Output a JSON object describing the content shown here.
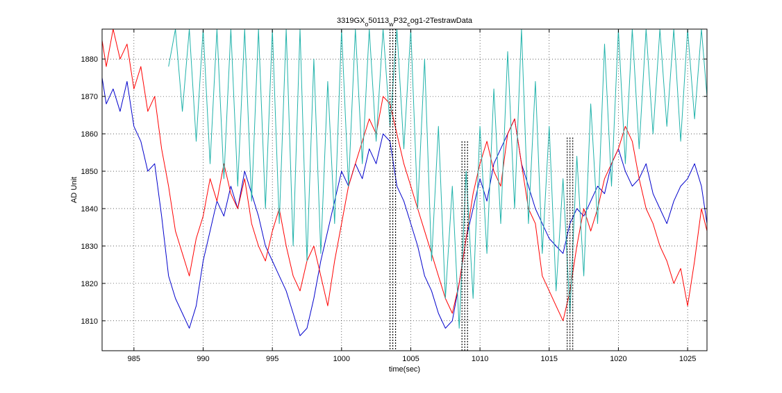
{
  "chart_data": {
    "type": "line",
    "title": {
      "parts": [
        {
          "text": "3319GX",
          "sub": false
        },
        {
          "text": "o",
          "sub": true
        },
        {
          "text": "50113",
          "sub": false
        },
        {
          "text": "w",
          "sub": true
        },
        {
          "text": "P32",
          "sub": false
        },
        {
          "text": "c",
          "sub": true
        },
        {
          "text": "og1-2TestrawData",
          "sub": false
        }
      ]
    },
    "xlabel": "time(sec)",
    "ylabel": "AD Unit",
    "xlim": [
      982.7,
      1026.4
    ],
    "ylim": [
      1802,
      1888
    ],
    "xticks": [
      985,
      990,
      995,
      1000,
      1005,
      1010,
      1015,
      1020,
      1025
    ],
    "yticks": [
      1810,
      1820,
      1830,
      1840,
      1850,
      1860,
      1870,
      1880
    ],
    "grid": true,
    "grid_style": "dotted",
    "event_markers": [
      {
        "x": 1003.7,
        "y_range": [
          1802,
          1888
        ]
      },
      {
        "x": 1008.9,
        "y_range": [
          1802,
          1858
        ]
      },
      {
        "x": 1016.5,
        "y_range": [
          1802,
          1859
        ]
      }
    ],
    "series": [
      {
        "color": "#0000cc",
        "x": [
          982.7,
          983.0,
          983.5,
          984.0,
          984.5,
          985.0,
          985.5,
          986.0,
          986.5,
          987.0,
          987.5,
          988.0,
          988.5,
          989.0,
          989.5,
          990.0,
          990.5,
          991.0,
          991.5,
          992.0,
          992.5,
          993.0,
          993.5,
          994.0,
          994.5,
          995.0,
          995.5,
          996.0,
          996.5,
          997.0,
          997.5,
          998.0,
          998.5,
          999.0,
          999.5,
          1000.0,
          1000.5,
          1001.0,
          1001.5,
          1002.0,
          1002.5,
          1003.0,
          1003.5,
          1004.0,
          1004.5,
          1005.0,
          1005.5,
          1006.0,
          1006.5,
          1007.0,
          1007.5,
          1008.0,
          1008.5,
          1009.0,
          1009.5,
          1010.0,
          1010.5,
          1011.0,
          1011.5,
          1012.0,
          1012.5,
          1013.0,
          1013.5,
          1014.0,
          1014.5,
          1015.0,
          1015.5,
          1016.0,
          1016.5,
          1017.0,
          1017.5,
          1018.0,
          1018.5,
          1019.0,
          1019.5,
          1020.0,
          1020.5,
          1021.0,
          1021.5,
          1022.0,
          1022.5,
          1023.0,
          1023.5,
          1024.0,
          1024.5,
          1025.0,
          1025.5,
          1026.0,
          1026.4
        ],
        "y": [
          1875,
          1868,
          1872,
          1866,
          1874,
          1862,
          1858,
          1850,
          1852,
          1838,
          1822,
          1816,
          1812,
          1808,
          1814,
          1826,
          1834,
          1842,
          1838,
          1846,
          1840,
          1850,
          1844,
          1838,
          1830,
          1826,
          1822,
          1818,
          1812,
          1806,
          1808,
          1816,
          1826,
          1834,
          1842,
          1850,
          1846,
          1852,
          1848,
          1856,
          1852,
          1860,
          1858,
          1846,
          1842,
          1836,
          1830,
          1822,
          1818,
          1812,
          1808,
          1810,
          1820,
          1832,
          1840,
          1848,
          1842,
          1852,
          1856,
          1860,
          1864,
          1852,
          1846,
          1840,
          1836,
          1832,
          1830,
          1828,
          1836,
          1840,
          1838,
          1842,
          1846,
          1844,
          1852,
          1856,
          1850,
          1846,
          1848,
          1852,
          1844,
          1840,
          1836,
          1842,
          1846,
          1848,
          1852,
          1846,
          1836
        ]
      },
      {
        "color": "#ff0000",
        "x": [
          982.7,
          983.0,
          983.5,
          984.0,
          984.5,
          985.0,
          985.5,
          986.0,
          986.5,
          987.0,
          987.5,
          988.0,
          988.5,
          989.0,
          989.5,
          990.0,
          990.5,
          991.0,
          991.5,
          992.0,
          992.5,
          993.0,
          993.5,
          994.0,
          994.5,
          995.0,
          995.5,
          996.0,
          996.5,
          997.0,
          997.5,
          998.0,
          998.5,
          999.0,
          999.5,
          1000.0,
          1000.5,
          1001.0,
          1001.5,
          1002.0,
          1002.5,
          1003.0,
          1003.5,
          1004.0,
          1004.5,
          1005.0,
          1005.5,
          1006.0,
          1006.5,
          1007.0,
          1007.5,
          1008.0,
          1008.5,
          1009.0,
          1009.5,
          1010.0,
          1010.5,
          1011.0,
          1011.5,
          1012.0,
          1012.5,
          1013.0,
          1013.5,
          1014.0,
          1014.5,
          1015.0,
          1015.5,
          1016.0,
          1016.5,
          1017.0,
          1017.5,
          1018.0,
          1018.5,
          1019.0,
          1019.5,
          1020.0,
          1020.5,
          1021.0,
          1021.5,
          1022.0,
          1022.5,
          1023.0,
          1023.5,
          1024.0,
          1024.5,
          1025.0,
          1025.5,
          1026.0,
          1026.4
        ],
        "y": [
          1885,
          1878,
          1888,
          1880,
          1884,
          1872,
          1878,
          1866,
          1870,
          1856,
          1846,
          1834,
          1828,
          1822,
          1832,
          1838,
          1848,
          1842,
          1852,
          1844,
          1840,
          1848,
          1836,
          1830,
          1826,
          1834,
          1840,
          1830,
          1822,
          1818,
          1826,
          1830,
          1822,
          1814,
          1826,
          1836,
          1846,
          1852,
          1858,
          1864,
          1860,
          1870,
          1868,
          1860,
          1852,
          1846,
          1840,
          1834,
          1828,
          1822,
          1816,
          1812,
          1820,
          1832,
          1844,
          1852,
          1858,
          1850,
          1846,
          1860,
          1864,
          1852,
          1840,
          1836,
          1822,
          1818,
          1814,
          1810,
          1818,
          1830,
          1840,
          1834,
          1840,
          1848,
          1852,
          1856,
          1862,
          1858,
          1848,
          1840,
          1836,
          1830,
          1826,
          1820,
          1824,
          1814,
          1826,
          1840,
          1834
        ]
      },
      {
        "color": "#20b2aa",
        "x": [
          987.5,
          988.0,
          988.5,
          989.0,
          989.5,
          990.0,
          990.5,
          991.0,
          991.5,
          992.0,
          992.5,
          993.0,
          993.5,
          994.0,
          994.5,
          995.0,
          995.5,
          996.0,
          996.5,
          997.0,
          997.5,
          998.0,
          998.5,
          999.0,
          999.5,
          1000.0,
          1000.5,
          1001.0,
          1001.5,
          1002.0,
          1002.5,
          1003.0,
          1003.5,
          1004.0,
          1004.5,
          1005.0,
          1005.5,
          1006.0,
          1006.5,
          1007.0,
          1007.5,
          1008.0,
          1008.5,
          1009.0,
          1009.5,
          1010.0,
          1010.5,
          1011.0,
          1011.5,
          1012.0,
          1012.5,
          1013.0,
          1013.5,
          1014.0,
          1014.5,
          1015.0,
          1015.5,
          1016.0,
          1016.5,
          1017.0,
          1017.5,
          1018.0,
          1018.5,
          1019.0,
          1019.5,
          1020.0,
          1020.5,
          1021.0,
          1021.5,
          1022.0,
          1022.5,
          1023.0,
          1023.5,
          1024.0,
          1024.5,
          1025.0,
          1025.5,
          1026.0,
          1026.4
        ],
        "y": [
          1878,
          1888,
          1866,
          1888,
          1858,
          1888,
          1852,
          1888,
          1848,
          1888,
          1846,
          1888,
          1842,
          1888,
          1840,
          1888,
          1836,
          1888,
          1830,
          1888,
          1826,
          1880,
          1828,
          1874,
          1836,
          1888,
          1846,
          1888,
          1852,
          1888,
          1858,
          1888,
          1862,
          1888,
          1856,
          1888,
          1840,
          1880,
          1826,
          1862,
          1816,
          1846,
          1808,
          1850,
          1816,
          1862,
          1828,
          1872,
          1836,
          1882,
          1840,
          1888,
          1836,
          1874,
          1828,
          1862,
          1818,
          1848,
          1812,
          1854,
          1822,
          1868,
          1836,
          1884,
          1846,
          1888,
          1852,
          1888,
          1856,
          1888,
          1860,
          1888,
          1862,
          1888,
          1858,
          1888,
          1864,
          1888,
          1870
        ]
      }
    ]
  }
}
